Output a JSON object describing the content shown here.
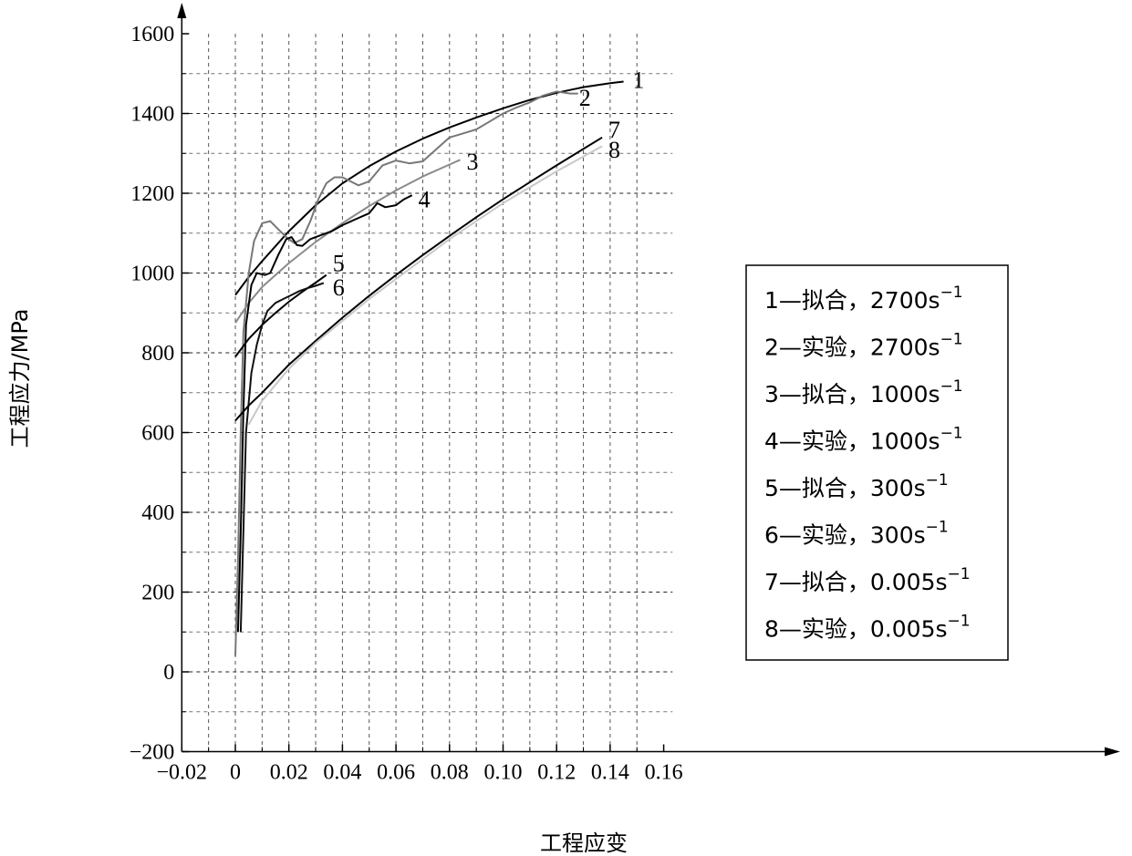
{
  "chart_data": {
    "type": "line",
    "xlabel": "工程应变",
    "ylabel": "工程应力/MPa",
    "xlim": [
      -0.02,
      0.16
    ],
    "ylim": [
      -200,
      1600
    ],
    "xticks": [
      -0.02,
      0,
      0.02,
      0.04,
      0.06,
      0.08,
      0.1,
      0.12,
      0.14,
      0.16
    ],
    "xtick_labels": [
      "−0.02",
      "0",
      "0.02",
      "0.04",
      "0.06",
      "0.08",
      "0.10",
      "0.12",
      "0.14",
      "0.16"
    ],
    "yticks": [
      -200,
      0,
      200,
      400,
      600,
      800,
      1000,
      1200,
      1400,
      1600
    ],
    "ytick_labels": [
      "−200",
      "0",
      "200",
      "400",
      "600",
      "800",
      "1000",
      "1200",
      "1400",
      "1600"
    ],
    "grid": true,
    "legend_position": "right",
    "series": [
      {
        "id": "1",
        "legend": "1—拟合，2700s",
        "superscript": "−1",
        "color": "#000000",
        "points": [
          [
            0,
            945
          ],
          [
            0.005,
            990
          ],
          [
            0.01,
            1030
          ],
          [
            0.02,
            1105
          ],
          [
            0.03,
            1170
          ],
          [
            0.04,
            1225
          ],
          [
            0.05,
            1268
          ],
          [
            0.06,
            1305
          ],
          [
            0.07,
            1337
          ],
          [
            0.08,
            1365
          ],
          [
            0.09,
            1390
          ],
          [
            0.1,
            1413
          ],
          [
            0.11,
            1434
          ],
          [
            0.12,
            1452
          ],
          [
            0.13,
            1466
          ],
          [
            0.14,
            1476
          ],
          [
            0.145,
            1480
          ]
        ],
        "label_at": [
          0.147,
          1485
        ]
      },
      {
        "id": "2",
        "legend": "2—实验，2700s",
        "superscript": "−1",
        "color": "#777777",
        "points": [
          [
            0,
            40
          ],
          [
            0.001,
            280
          ],
          [
            0.002,
            600
          ],
          [
            0.003,
            850
          ],
          [
            0.005,
            1000
          ],
          [
            0.007,
            1080
          ],
          [
            0.01,
            1125
          ],
          [
            0.013,
            1130
          ],
          [
            0.016,
            1110
          ],
          [
            0.019,
            1090
          ],
          [
            0.022,
            1075
          ],
          [
            0.025,
            1085
          ],
          [
            0.028,
            1130
          ],
          [
            0.031,
            1185
          ],
          [
            0.034,
            1225
          ],
          [
            0.037,
            1240
          ],
          [
            0.04,
            1240
          ],
          [
            0.043,
            1230
          ],
          [
            0.046,
            1220
          ],
          [
            0.05,
            1230
          ],
          [
            0.055,
            1270
          ],
          [
            0.06,
            1282
          ],
          [
            0.065,
            1275
          ],
          [
            0.07,
            1280
          ],
          [
            0.075,
            1310
          ],
          [
            0.08,
            1340
          ],
          [
            0.085,
            1350
          ],
          [
            0.09,
            1360
          ],
          [
            0.095,
            1380
          ],
          [
            0.1,
            1400
          ],
          [
            0.105,
            1415
          ],
          [
            0.11,
            1428
          ],
          [
            0.115,
            1445
          ],
          [
            0.12,
            1455
          ],
          [
            0.125,
            1450
          ],
          [
            0.128,
            1450
          ]
        ],
        "label_at": [
          0.127,
          1440
        ]
      },
      {
        "id": "3",
        "legend": "3—拟合，1000s",
        "superscript": "−1",
        "color": "#8a8a8a",
        "points": [
          [
            0,
            875
          ],
          [
            0.005,
            925
          ],
          [
            0.01,
            965
          ],
          [
            0.02,
            1025
          ],
          [
            0.03,
            1078
          ],
          [
            0.04,
            1125
          ],
          [
            0.05,
            1168
          ],
          [
            0.06,
            1207
          ],
          [
            0.07,
            1242
          ],
          [
            0.08,
            1272
          ],
          [
            0.084,
            1284
          ]
        ],
        "label_at": [
          0.085,
          1280
        ]
      },
      {
        "id": "4",
        "legend": "4—实验，1000s",
        "superscript": "−1",
        "color": "#000000",
        "points": [
          [
            0.001,
            100
          ],
          [
            0.002,
            350
          ],
          [
            0.003,
            650
          ],
          [
            0.004,
            870
          ],
          [
            0.006,
            970
          ],
          [
            0.008,
            1000
          ],
          [
            0.011,
            995
          ],
          [
            0.013,
            1000
          ],
          [
            0.016,
            1045
          ],
          [
            0.019,
            1085
          ],
          [
            0.021,
            1090
          ],
          [
            0.023,
            1070
          ],
          [
            0.025,
            1068
          ],
          [
            0.028,
            1085
          ],
          [
            0.032,
            1095
          ],
          [
            0.036,
            1105
          ],
          [
            0.04,
            1120
          ],
          [
            0.045,
            1135
          ],
          [
            0.05,
            1150
          ],
          [
            0.053,
            1175
          ],
          [
            0.056,
            1165
          ],
          [
            0.06,
            1170
          ],
          [
            0.063,
            1185
          ],
          [
            0.066,
            1195
          ]
        ],
        "label_at": [
          0.067,
          1185
        ]
      },
      {
        "id": "5",
        "legend": "5—拟合，300s",
        "superscript": "−1",
        "color": "#000000",
        "points": [
          [
            0,
            790
          ],
          [
            0.005,
            835
          ],
          [
            0.01,
            870
          ],
          [
            0.015,
            900
          ],
          [
            0.02,
            928
          ],
          [
            0.025,
            953
          ],
          [
            0.03,
            976
          ],
          [
            0.034,
            995
          ]
        ],
        "label_at": [
          0.035,
          1025
        ]
      },
      {
        "id": "6",
        "legend": "6—实验，300s",
        "superscript": "−1",
        "color": "#111111",
        "points": [
          [
            0.002,
            100
          ],
          [
            0.003,
            350
          ],
          [
            0.004,
            600
          ],
          [
            0.006,
            750
          ],
          [
            0.008,
            820
          ],
          [
            0.01,
            870
          ],
          [
            0.012,
            905
          ],
          [
            0.015,
            925
          ],
          [
            0.018,
            935
          ],
          [
            0.021,
            945
          ],
          [
            0.024,
            955
          ],
          [
            0.027,
            962
          ],
          [
            0.03,
            968
          ],
          [
            0.033,
            975
          ]
        ],
        "label_at": [
          0.035,
          965
        ]
      },
      {
        "id": "7",
        "legend": "7—拟合，0.005s",
        "superscript": "−1",
        "color": "#000000",
        "points": [
          [
            0,
            630
          ],
          [
            0.005,
            668
          ],
          [
            0.01,
            700
          ],
          [
            0.02,
            770
          ],
          [
            0.03,
            830
          ],
          [
            0.04,
            888
          ],
          [
            0.05,
            943
          ],
          [
            0.06,
            995
          ],
          [
            0.07,
            1045
          ],
          [
            0.08,
            1093
          ],
          [
            0.09,
            1140
          ],
          [
            0.1,
            1185
          ],
          [
            0.11,
            1228
          ],
          [
            0.12,
            1270
          ],
          [
            0.13,
            1311
          ],
          [
            0.137,
            1340
          ]
        ],
        "label_at": [
          0.138,
          1360
        ]
      },
      {
        "id": "8",
        "legend": "8—实验，0.005s",
        "superscript": "−1",
        "color": "#c8c8c8",
        "points": [
          [
            0.005,
            620
          ],
          [
            0.01,
            680
          ],
          [
            0.02,
            760
          ],
          [
            0.03,
            825
          ],
          [
            0.04,
            880
          ],
          [
            0.05,
            935
          ],
          [
            0.06,
            985
          ],
          [
            0.07,
            1035
          ],
          [
            0.08,
            1085
          ],
          [
            0.09,
            1130
          ],
          [
            0.1,
            1175
          ],
          [
            0.11,
            1215
          ],
          [
            0.12,
            1255
          ],
          [
            0.13,
            1292
          ],
          [
            0.137,
            1318
          ]
        ],
        "label_at": [
          0.138,
          1310
        ]
      }
    ]
  }
}
